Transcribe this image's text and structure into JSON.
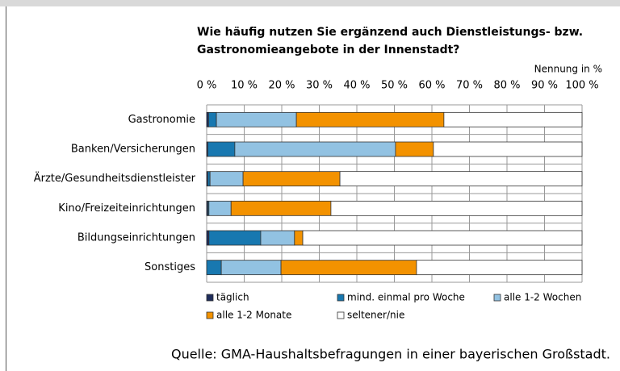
{
  "chart_data": {
    "type": "stacked_barh",
    "title": [
      "Wie häufig nutzen Sie ergänzend auch Dienstleistungs- bzw.",
      "Gastronomieangebote in der Innenstadt?"
    ],
    "xlabel": "Nennung in %",
    "source": "Quelle: GMA-Haushaltsbefragungen in einer bayerischen Großstadt.",
    "categories": [
      "Gastronomie",
      "Banken/Versicherungen",
      "Ärzte/Gesundheitsdienstleister",
      "Kino/Freizeiteinrichtungen",
      "Bildungseinrichtungen",
      "Sonstiges"
    ],
    "series": [
      {
        "name": "täglich",
        "color": "#1f2d5c",
        "values": [
          0.5,
          0.3,
          0.3,
          0.3,
          0.6,
          0
        ]
      },
      {
        "name": "mind. einmal pro Woche",
        "color": "#1878b0",
        "values": [
          2.1,
          7.2,
          0.6,
          0.3,
          13.8,
          3.9
        ]
      },
      {
        "name": "alle 1-2 Wochen",
        "color": "#92c2e2",
        "values": [
          21.3,
          42.8,
          8.8,
          5.9,
          9.0,
          15.9
        ]
      },
      {
        "name": "alle 1-2 Monate",
        "color": "#f39200",
        "values": [
          39.3,
          10.1,
          25.8,
          26.6,
          2.2,
          36.1
        ]
      },
      {
        "name": "seltener/nie",
        "color": "#ffffff",
        "values": [
          36.8,
          39.6,
          64.5,
          66.9,
          74.4,
          44.1
        ]
      }
    ],
    "xlim": [
      0,
      100
    ],
    "xticks": [
      {
        "value": 0,
        "label": "0 %"
      },
      {
        "value": 10,
        "label": "10 %"
      },
      {
        "value": 20,
        "label": "20 %"
      },
      {
        "value": 30,
        "label": "30 %"
      },
      {
        "value": 40,
        "label": "40 %"
      },
      {
        "value": 50,
        "label": "50 %"
      },
      {
        "value": 60,
        "label": "60 %"
      },
      {
        "value": 70,
        "label": "70 %"
      },
      {
        "value": 80,
        "label": "80 %"
      },
      {
        "value": 90,
        "label": "90 %"
      },
      {
        "value": 100,
        "label": "100 %"
      }
    ],
    "grid": true
  }
}
